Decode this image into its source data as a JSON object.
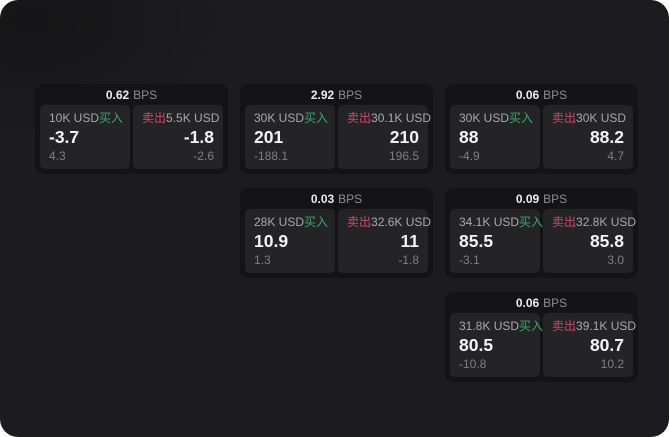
{
  "labels": {
    "bps_suffix": "BPS",
    "buy": "买入",
    "sell": "卖出"
  },
  "colors": {
    "surface_bg": "#1c1c1e",
    "card_bg": "#141416",
    "panel_bg": "#242427",
    "buy_green": "#3fa86a",
    "sell_red": "#cf4a66"
  },
  "cards": [
    {
      "col": 0,
      "bps": "0.62",
      "buy": {
        "amount": "10K USD",
        "price": "-3.7",
        "delta": "4.3"
      },
      "sell": {
        "amount": "5.5K USD",
        "price": "-1.8",
        "delta": "-2.6"
      }
    },
    {
      "col": 1,
      "bps": "2.92",
      "buy": {
        "amount": "30K USD",
        "price": "201",
        "delta": "-188.1"
      },
      "sell": {
        "amount": "30.1K USD",
        "price": "210",
        "delta": "196.5"
      }
    },
    {
      "col": 1,
      "bps": "0.03",
      "buy": {
        "amount": "28K USD",
        "price": "10.9",
        "delta": "1.3"
      },
      "sell": {
        "amount": "32.6K USD",
        "price": "11",
        "delta": "-1.8"
      }
    },
    {
      "col": 2,
      "bps": "0.06",
      "buy": {
        "amount": "30K USD",
        "price": "88",
        "delta": "-4.9"
      },
      "sell": {
        "amount": "30K USD",
        "price": "88.2",
        "delta": "4.7"
      }
    },
    {
      "col": 2,
      "bps": "0.09",
      "buy": {
        "amount": "34.1K USD",
        "price": "85.5",
        "delta": "-3.1"
      },
      "sell": {
        "amount": "32.8K USD",
        "price": "85.8",
        "delta": "3.0"
      }
    },
    {
      "col": 2,
      "bps": "0.06",
      "buy": {
        "amount": "31.8K USD",
        "price": "80.5",
        "delta": "-10.8"
      },
      "sell": {
        "amount": "39.1K USD",
        "price": "80.7",
        "delta": "10.2"
      }
    }
  ]
}
